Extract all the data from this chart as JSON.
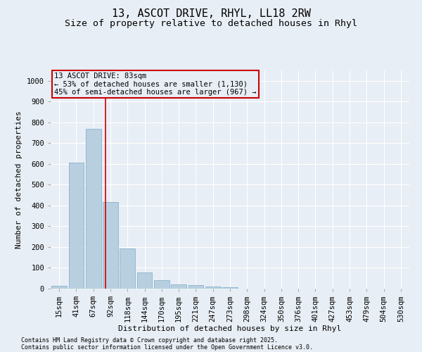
{
  "title1": "13, ASCOT DRIVE, RHYL, LL18 2RW",
  "title2": "Size of property relative to detached houses in Rhyl",
  "xlabel": "Distribution of detached houses by size in Rhyl",
  "ylabel": "Number of detached properties",
  "categories": [
    "15sqm",
    "41sqm",
    "67sqm",
    "92sqm",
    "118sqm",
    "144sqm",
    "170sqm",
    "195sqm",
    "221sqm",
    "247sqm",
    "273sqm",
    "298sqm",
    "324sqm",
    "350sqm",
    "376sqm",
    "401sqm",
    "427sqm",
    "453sqm",
    "479sqm",
    "504sqm",
    "530sqm"
  ],
  "values": [
    15,
    607,
    770,
    415,
    193,
    78,
    40,
    20,
    16,
    11,
    6,
    0,
    0,
    0,
    0,
    0,
    0,
    0,
    0,
    0,
    0
  ],
  "bar_color": "#b8cfe0",
  "bar_edge_color": "#7aaac8",
  "bg_color": "#e8eef5",
  "grid_color": "#ffffff",
  "annotation_text_line1": "13 ASCOT DRIVE: 83sqm",
  "annotation_text_line2": "← 53% of detached houses are smaller (1,130)",
  "annotation_text_line3": "45% of semi-detached houses are larger (967) →",
  "annotation_box_color": "#cc0000",
  "property_line_color": "#cc0000",
  "property_line_x": 2.72,
  "ylim": [
    0,
    1050
  ],
  "yticks": [
    0,
    100,
    200,
    300,
    400,
    500,
    600,
    700,
    800,
    900,
    1000
  ],
  "footnote1": "Contains HM Land Registry data © Crown copyright and database right 2025.",
  "footnote2": "Contains public sector information licensed under the Open Government Licence v3.0.",
  "title_fontsize": 11,
  "subtitle_fontsize": 9.5,
  "axis_label_fontsize": 8,
  "tick_fontsize": 7.5,
  "annotation_fontsize": 7.5,
  "footnote_fontsize": 6
}
